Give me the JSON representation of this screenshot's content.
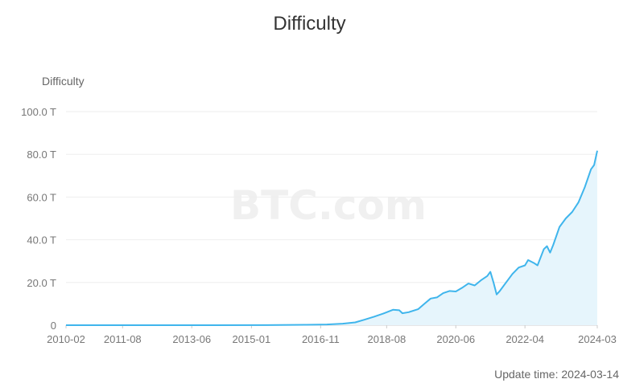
{
  "chart_data": {
    "type": "area",
    "title": "Difficulty",
    "ylabel": "Difficulty",
    "xlabel": "",
    "watermark": "BTC.com",
    "update_label": "Update time:",
    "update_date": "2024-03-14",
    "x_range": [
      "2009-01",
      "2024-03"
    ],
    "ylim": [
      0,
      100
    ],
    "y_unit": "T",
    "y_tick_values": [
      0,
      20,
      40,
      60,
      80,
      100
    ],
    "y_tick_labels": [
      "0",
      "20.0 T",
      "40.0 T",
      "60.0 T",
      "80.0 T",
      "100.0 T"
    ],
    "x_tick_dates": [
      "2010-02",
      "2011-08",
      "2013-06",
      "2015-01",
      "2016-11",
      "2018-08",
      "2020-06",
      "2022-04",
      "2024-03"
    ],
    "x_tick_labels": [
      "2010-02",
      "2011-08",
      "2013-06",
      "2015-01",
      "2016-11",
      "2018-08",
      "2020-06",
      "2022-04",
      "2024-03"
    ],
    "grid": true,
    "series": [
      {
        "name": "",
        "color": "#3fb5ec",
        "fill": "#e6f5fc",
        "points": [
          [
            "2009-01",
            0
          ],
          [
            "2012-01",
            0
          ],
          [
            "2014-01",
            0.01
          ],
          [
            "2015-06",
            0.05
          ],
          [
            "2016-06",
            0.2
          ],
          [
            "2017-01",
            0.34
          ],
          [
            "2017-06",
            0.7
          ],
          [
            "2017-10",
            1.3
          ],
          [
            "2018-01",
            2.6
          ],
          [
            "2018-04",
            4
          ],
          [
            "2018-07",
            5.5
          ],
          [
            "2018-10",
            7.2
          ],
          [
            "2018-12",
            7.0
          ],
          [
            "2019-01",
            5.6
          ],
          [
            "2019-03",
            6.1
          ],
          [
            "2019-06",
            7.5
          ],
          [
            "2019-08",
            10
          ],
          [
            "2019-10",
            12.5
          ],
          [
            "2019-12",
            13.0
          ],
          [
            "2020-02",
            15
          ],
          [
            "2020-04",
            16
          ],
          [
            "2020-06",
            15.8
          ],
          [
            "2020-08",
            17.5
          ],
          [
            "2020-10",
            19.5
          ],
          [
            "2020-12",
            18.6
          ],
          [
            "2021-02",
            21
          ],
          [
            "2021-04",
            23
          ],
          [
            "2021-05",
            25
          ],
          [
            "2021-06",
            20
          ],
          [
            "2021-07",
            14.4
          ],
          [
            "2021-08",
            16
          ],
          [
            "2021-10",
            20
          ],
          [
            "2021-12",
            24
          ],
          [
            "2022-02",
            27
          ],
          [
            "2022-04",
            28
          ],
          [
            "2022-05",
            30.5
          ],
          [
            "2022-07",
            29
          ],
          [
            "2022-08",
            28
          ],
          [
            "2022-10",
            35.6
          ],
          [
            "2022-11",
            37
          ],
          [
            "2022-12",
            34
          ],
          [
            "2023-01",
            37.6
          ],
          [
            "2023-03",
            46
          ],
          [
            "2023-05",
            50
          ],
          [
            "2023-07",
            53
          ],
          [
            "2023-09",
            57.5
          ],
          [
            "2023-11",
            64.5
          ],
          [
            "2024-01",
            73
          ],
          [
            "2024-02",
            75
          ],
          [
            "2024-03",
            81.7
          ]
        ]
      }
    ]
  }
}
